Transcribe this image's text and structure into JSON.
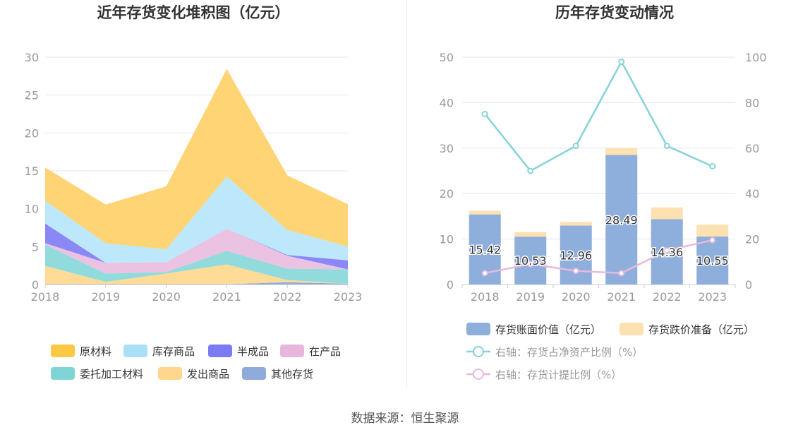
{
  "source_label": "数据来源：恒生聚源",
  "chart_data": [
    {
      "type": "area",
      "stacked": true,
      "title": "近年存货变化堆积图（亿元）",
      "categories": [
        "2018",
        "2019",
        "2020",
        "2021",
        "2022",
        "2023"
      ],
      "ylim": [
        0,
        30
      ],
      "yticks": [
        0,
        5,
        10,
        15,
        20,
        25,
        30
      ],
      "grid": true,
      "series": [
        {
          "name": "其他存货",
          "color": "#8fabdc",
          "values": [
            0.05,
            0.05,
            0.05,
            0.05,
            0.3,
            0.1
          ]
        },
        {
          "name": "发出商品",
          "color": "#fedb96",
          "values": [
            2.4,
            0.3,
            1.4,
            2.6,
            0.3,
            0.0
          ]
        },
        {
          "name": "委托加工材料",
          "color": "#92dbdc",
          "values": [
            2.8,
            1.1,
            0.2,
            1.8,
            1.5,
            1.9
          ]
        },
        {
          "name": "在产品",
          "color": "#ecc2e2",
          "values": [
            0.2,
            1.4,
            1.3,
            2.9,
            1.7,
            0.0
          ]
        },
        {
          "name": "半成品",
          "color": "#8a88f6",
          "values": [
            2.6,
            0.0,
            0.0,
            0.0,
            0.1,
            1.2
          ]
        },
        {
          "name": "库存商品",
          "color": "#bde7fb",
          "values": [
            3.0,
            2.6,
            1.7,
            6.9,
            3.3,
            1.8
          ]
        },
        {
          "name": "原材料",
          "color": "#fed475",
          "values": [
            4.4,
            5.1,
            8.3,
            14.2,
            7.2,
            5.6
          ]
        }
      ],
      "legend": [
        {
          "name": "原材料",
          "color": "#fec844"
        },
        {
          "name": "库存商品",
          "color": "#a9e0f8"
        },
        {
          "name": "半成品",
          "color": "#7b7bf3"
        },
        {
          "name": "在产品",
          "color": "#e8b6dc"
        },
        {
          "name": "委托加工材料",
          "color": "#7fd4d6"
        },
        {
          "name": "发出商品",
          "color": "#fed68e"
        },
        {
          "name": "其他存货",
          "color": "#8fabdc"
        }
      ]
    },
    {
      "type": "bar+line",
      "title": "历年存货变动情况",
      "categories": [
        "2018",
        "2019",
        "2020",
        "2021",
        "2022",
        "2023"
      ],
      "ylim_left": [
        0,
        50
      ],
      "yticks_left": [
        0,
        10,
        20,
        30,
        40,
        50
      ],
      "ylim_right": [
        0,
        100
      ],
      "yticks_right": [
        0,
        20,
        40,
        60,
        80,
        100
      ],
      "grid": true,
      "bars": [
        {
          "name": "存货账面价值（亿元）",
          "color": "#8eaedc",
          "values": [
            15.42,
            10.53,
            12.96,
            28.49,
            14.36,
            10.55
          ]
        },
        {
          "name": "存货跌价准备（亿元）",
          "color": "#fde1b0",
          "values": [
            0.8,
            1.0,
            0.8,
            1.5,
            2.6,
            2.6
          ]
        }
      ],
      "data_labels": [
        "15.42",
        "10.53",
        "12.96",
        "28.49",
        "14.36",
        "10.55"
      ],
      "lines": [
        {
          "name": "右轴：存货占净资产比例（%）",
          "color": "#86d2d8",
          "values": [
            75,
            50,
            61,
            98,
            61,
            52
          ]
        },
        {
          "name": "右轴：存货计提比例（%）",
          "color": "#e7b9dd",
          "values": [
            5,
            9,
            6,
            5,
            15,
            19.5
          ]
        }
      ]
    }
  ]
}
